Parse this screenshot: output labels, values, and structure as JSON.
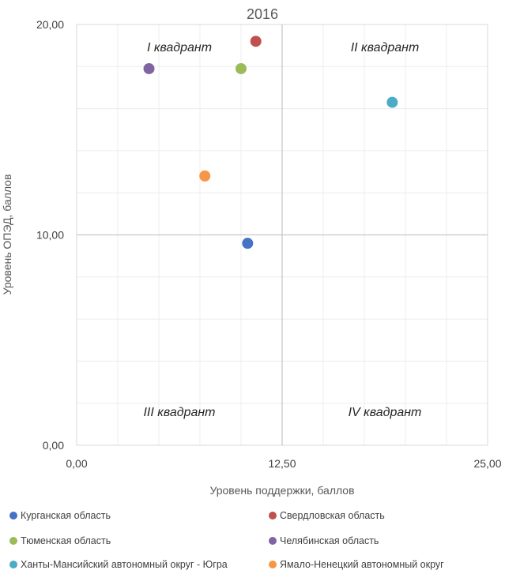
{
  "chart_data": {
    "type": "scatter",
    "title": "2016",
    "xlabel": "Уровень поддержки, баллов",
    "ylabel": "Уровень ОПЭД, баллов",
    "xlim": [
      0,
      25
    ],
    "ylim": [
      0,
      20
    ],
    "x_ticks": [
      "0,00",
      "12,50",
      "25,00"
    ],
    "y_ticks": [
      "0,00",
      "10,00",
      "20,00"
    ],
    "grid": true,
    "quadrant_divider": {
      "x": 12.5,
      "y": 10
    },
    "quadrant_labels": [
      "I квадрант",
      "II квадрант",
      "III квадрант",
      "IV квадрант"
    ],
    "legend_position": "bottom",
    "series": [
      {
        "name": "Курганская область",
        "color": "#4472C4",
        "x": 10.4,
        "y": 9.6
      },
      {
        "name": "Свердловская область",
        "color": "#C0504D",
        "x": 10.9,
        "y": 19.2
      },
      {
        "name": "Тюменская область",
        "color": "#9BBB59",
        "x": 10.0,
        "y": 17.9
      },
      {
        "name": "Челябинская область",
        "color": "#8064A2",
        "x": 4.4,
        "y": 17.9
      },
      {
        "name": "Ханты-Мансийский автономный округ - Югра",
        "color": "#4BACC6",
        "x": 19.2,
        "y": 16.3
      },
      {
        "name": "Ямало-Ненецкий автономный округ",
        "color": "#F79646",
        "x": 7.8,
        "y": 12.8
      }
    ]
  }
}
